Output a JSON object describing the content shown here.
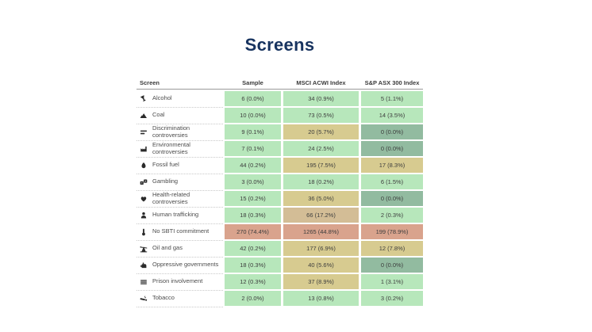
{
  "title": "Screens",
  "colors": {
    "title": "#17335f",
    "header_rule": "#9a9a9a",
    "green": "#b7e7bb",
    "khaki": "#d7cb90",
    "tan": "#d3bd96",
    "salmon": "#d9a38d",
    "gray_green": "#92bba0"
  },
  "table": {
    "columns": [
      "Screen",
      "Sample",
      "MSCI ACWI Index",
      "S&P ASX 300 Index"
    ],
    "rows": [
      {
        "icon": "wine-glass-icon",
        "label": "Alcohol",
        "cells": [
          {
            "text": "6 (0.0%)",
            "color": "green"
          },
          {
            "text": "34 (0.9%)",
            "color": "green"
          },
          {
            "text": "5 (1.1%)",
            "color": "green"
          }
        ]
      },
      {
        "icon": "coal-pile-icon",
        "label": "Coal",
        "cells": [
          {
            "text": "10 (0.0%)",
            "color": "green"
          },
          {
            "text": "73 (0.5%)",
            "color": "green"
          },
          {
            "text": "14 (3.5%)",
            "color": "green"
          }
        ]
      },
      {
        "icon": "unequal-bars-icon",
        "label": "Discrimination controversies",
        "cells": [
          {
            "text": "9 (0.1%)",
            "color": "green"
          },
          {
            "text": "20 (5.7%)",
            "color": "khaki"
          },
          {
            "text": "0 (0.0%)",
            "color": "gray_green"
          }
        ]
      },
      {
        "icon": "factory-icon",
        "label": "Environmental controversies",
        "cells": [
          {
            "text": "7 (0.1%)",
            "color": "green"
          },
          {
            "text": "24 (2.5%)",
            "color": "green"
          },
          {
            "text": "0 (0.0%)",
            "color": "gray_green"
          }
        ]
      },
      {
        "icon": "flame-icon",
        "label": "Fossil fuel",
        "cells": [
          {
            "text": "44 (0.2%)",
            "color": "green"
          },
          {
            "text": "195 (7.5%)",
            "color": "khaki"
          },
          {
            "text": "17 (8.3%)",
            "color": "khaki"
          }
        ]
      },
      {
        "icon": "dice-icon",
        "label": "Gambling",
        "cells": [
          {
            "text": "3 (0.0%)",
            "color": "green"
          },
          {
            "text": "18 (0.2%)",
            "color": "green"
          },
          {
            "text": "6 (1.5%)",
            "color": "green"
          }
        ]
      },
      {
        "icon": "heart-icon",
        "label": "Health-related controversies",
        "cells": [
          {
            "text": "15 (0.2%)",
            "color": "green"
          },
          {
            "text": "36 (5.0%)",
            "color": "khaki"
          },
          {
            "text": "0 (0.0%)",
            "color": "gray_green"
          }
        ]
      },
      {
        "icon": "person-icon",
        "label": "Human trafficking",
        "cells": [
          {
            "text": "18 (0.3%)",
            "color": "green"
          },
          {
            "text": "66 (17.2%)",
            "color": "tan"
          },
          {
            "text": "2 (0.3%)",
            "color": "green"
          }
        ]
      },
      {
        "icon": "thermometer-icon",
        "label": "No SBTI commitment",
        "cells": [
          {
            "text": "270 (74.4%)",
            "color": "salmon"
          },
          {
            "text": "1265 (44.8%)",
            "color": "salmon"
          },
          {
            "text": "199 (78.9%)",
            "color": "salmon"
          }
        ]
      },
      {
        "icon": "oil-pump-icon",
        "label": "Oil and gas",
        "cells": [
          {
            "text": "42 (0.2%)",
            "color": "green"
          },
          {
            "text": "177 (6.9%)",
            "color": "khaki"
          },
          {
            "text": "12 (7.8%)",
            "color": "khaki"
          }
        ]
      },
      {
        "icon": "fist-icon",
        "label": "Oppressive governments",
        "cells": [
          {
            "text": "18 (0.3%)",
            "color": "green"
          },
          {
            "text": "40 (5.6%)",
            "color": "khaki"
          },
          {
            "text": "0 (0.0%)",
            "color": "gray_green"
          }
        ]
      },
      {
        "icon": "prison-bars-icon",
        "label": "Prison involvement",
        "cells": [
          {
            "text": "12 (0.3%)",
            "color": "green"
          },
          {
            "text": "37 (8.9%)",
            "color": "khaki"
          },
          {
            "text": "1 (3.1%)",
            "color": "green"
          }
        ]
      },
      {
        "icon": "cigarette-icon",
        "label": "Tobacco",
        "cells": [
          {
            "text": "2 (0.0%)",
            "color": "green"
          },
          {
            "text": "13 (0.8%)",
            "color": "green"
          },
          {
            "text": "3 (0.2%)",
            "color": "green"
          }
        ]
      }
    ]
  },
  "chart_data": {
    "type": "table",
    "title": "Screens",
    "columns": [
      "Screen",
      "Sample",
      "MSCI ACWI Index",
      "S&P ASX 300 Index"
    ],
    "rows": [
      {
        "screen": "Alcohol",
        "sample": {
          "count": 6,
          "pct": 0.0
        },
        "msci_acwi": {
          "count": 34,
          "pct": 0.9
        },
        "sp_asx_300": {
          "count": 5,
          "pct": 1.1
        }
      },
      {
        "screen": "Coal",
        "sample": {
          "count": 10,
          "pct": 0.0
        },
        "msci_acwi": {
          "count": 73,
          "pct": 0.5
        },
        "sp_asx_300": {
          "count": 14,
          "pct": 3.5
        }
      },
      {
        "screen": "Discrimination controversies",
        "sample": {
          "count": 9,
          "pct": 0.1
        },
        "msci_acwi": {
          "count": 20,
          "pct": 5.7
        },
        "sp_asx_300": {
          "count": 0,
          "pct": 0.0
        }
      },
      {
        "screen": "Environmental controversies",
        "sample": {
          "count": 7,
          "pct": 0.1
        },
        "msci_acwi": {
          "count": 24,
          "pct": 2.5
        },
        "sp_asx_300": {
          "count": 0,
          "pct": 0.0
        }
      },
      {
        "screen": "Fossil fuel",
        "sample": {
          "count": 44,
          "pct": 0.2
        },
        "msci_acwi": {
          "count": 195,
          "pct": 7.5
        },
        "sp_asx_300": {
          "count": 17,
          "pct": 8.3
        }
      },
      {
        "screen": "Gambling",
        "sample": {
          "count": 3,
          "pct": 0.0
        },
        "msci_acwi": {
          "count": 18,
          "pct": 0.2
        },
        "sp_asx_300": {
          "count": 6,
          "pct": 1.5
        }
      },
      {
        "screen": "Health-related controversies",
        "sample": {
          "count": 15,
          "pct": 0.2
        },
        "msci_acwi": {
          "count": 36,
          "pct": 5.0
        },
        "sp_asx_300": {
          "count": 0,
          "pct": 0.0
        }
      },
      {
        "screen": "Human trafficking",
        "sample": {
          "count": 18,
          "pct": 0.3
        },
        "msci_acwi": {
          "count": 66,
          "pct": 17.2
        },
        "sp_asx_300": {
          "count": 2,
          "pct": 0.3
        }
      },
      {
        "screen": "No SBTI commitment",
        "sample": {
          "count": 270,
          "pct": 74.4
        },
        "msci_acwi": {
          "count": 1265,
          "pct": 44.8
        },
        "sp_asx_300": {
          "count": 199,
          "pct": 78.9
        }
      },
      {
        "screen": "Oil and gas",
        "sample": {
          "count": 42,
          "pct": 0.2
        },
        "msci_acwi": {
          "count": 177,
          "pct": 6.9
        },
        "sp_asx_300": {
          "count": 12,
          "pct": 7.8
        }
      },
      {
        "screen": "Oppressive governments",
        "sample": {
          "count": 18,
          "pct": 0.3
        },
        "msci_acwi": {
          "count": 40,
          "pct": 5.6
        },
        "sp_asx_300": {
          "count": 0,
          "pct": 0.0
        }
      },
      {
        "screen": "Prison involvement",
        "sample": {
          "count": 12,
          "pct": 0.3
        },
        "msci_acwi": {
          "count": 37,
          "pct": 8.9
        },
        "sp_asx_300": {
          "count": 1,
          "pct": 3.1
        }
      },
      {
        "screen": "Tobacco",
        "sample": {
          "count": 2,
          "pct": 0.0
        },
        "msci_acwi": {
          "count": 13,
          "pct": 0.8
        },
        "sp_asx_300": {
          "count": 3,
          "pct": 0.2
        }
      }
    ]
  }
}
